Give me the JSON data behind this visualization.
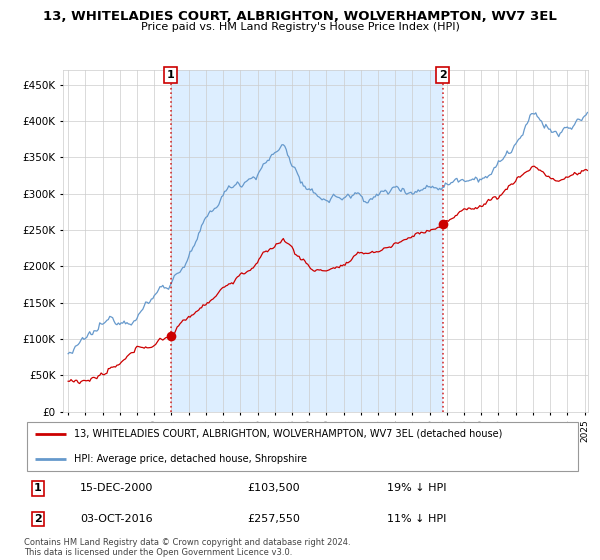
{
  "title": "13, WHITELADIES COURT, ALBRIGHTON, WOLVERHAMPTON, WV7 3EL",
  "subtitle": "Price paid vs. HM Land Registry's House Price Index (HPI)",
  "legend_line1": "13, WHITELADIES COURT, ALBRIGHTON, WOLVERHAMPTON, WV7 3EL (detached house)",
  "legend_line2": "HPI: Average price, detached house, Shropshire",
  "annotation1_date": "15-DEC-2000",
  "annotation1_price": "£103,500",
  "annotation1_hpi": "19% ↓ HPI",
  "annotation2_date": "03-OCT-2016",
  "annotation2_price": "£257,550",
  "annotation2_hpi": "11% ↓ HPI",
  "footer": "Contains HM Land Registry data © Crown copyright and database right 2024.\nThis data is licensed under the Open Government Licence v3.0.",
  "hpi_color": "#6699cc",
  "price_color": "#cc0000",
  "annotation_color": "#cc0000",
  "fill_color": "#ddeeff",
  "background_color": "#ffffff",
  "ylim": [
    0,
    470000
  ],
  "yticks": [
    0,
    50000,
    100000,
    150000,
    200000,
    250000,
    300000,
    350000,
    400000,
    450000
  ],
  "sale1_x": 2000.96,
  "sale1_y": 103500,
  "sale2_x": 2016.75,
  "sale2_y": 257550,
  "xmin": 1995.0,
  "xmax": 2025.2
}
